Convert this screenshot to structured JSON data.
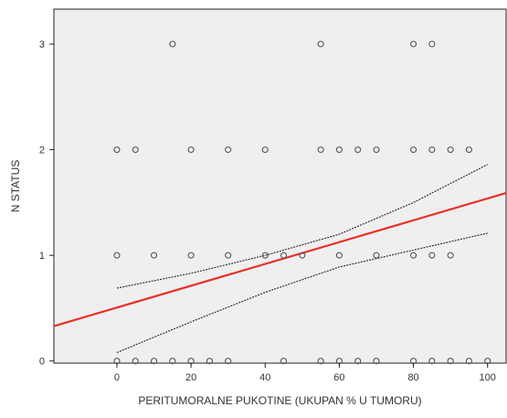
{
  "chart_data": {
    "type": "scatter",
    "title": "",
    "xlabel": "PERITUMORALNE PUKOTINE (UKUPAN % U TUMORU)",
    "ylabel": "N STATUS",
    "xlim": [
      -17,
      105
    ],
    "ylim": [
      -0.02,
      3.33
    ],
    "x_ticks": [
      0,
      20,
      40,
      60,
      80,
      100
    ],
    "y_ticks": [
      0,
      1,
      2,
      3
    ],
    "x_tick_labels": [
      "0",
      "20",
      "40",
      "60",
      "80",
      "100"
    ],
    "y_tick_labels": [
      "0",
      "1",
      "2",
      "3"
    ],
    "grid": false,
    "background": "#efefef",
    "points_color": "#555555",
    "points": [
      {
        "x": 0,
        "y": 0
      },
      {
        "x": 5,
        "y": 0
      },
      {
        "x": 10,
        "y": 0
      },
      {
        "x": 15,
        "y": 0
      },
      {
        "x": 20,
        "y": 0
      },
      {
        "x": 25,
        "y": 0
      },
      {
        "x": 30,
        "y": 0
      },
      {
        "x": 45,
        "y": 0
      },
      {
        "x": 55,
        "y": 0
      },
      {
        "x": 60,
        "y": 0
      },
      {
        "x": 65,
        "y": 0
      },
      {
        "x": 70,
        "y": 0
      },
      {
        "x": 80,
        "y": 0
      },
      {
        "x": 85,
        "y": 0
      },
      {
        "x": 90,
        "y": 0
      },
      {
        "x": 95,
        "y": 0
      },
      {
        "x": 100,
        "y": 0
      },
      {
        "x": 0,
        "y": 1
      },
      {
        "x": 10,
        "y": 1
      },
      {
        "x": 20,
        "y": 1
      },
      {
        "x": 30,
        "y": 1
      },
      {
        "x": 40,
        "y": 1
      },
      {
        "x": 45,
        "y": 1
      },
      {
        "x": 50,
        "y": 1
      },
      {
        "x": 60,
        "y": 1
      },
      {
        "x": 70,
        "y": 1
      },
      {
        "x": 80,
        "y": 1
      },
      {
        "x": 85,
        "y": 1
      },
      {
        "x": 90,
        "y": 1
      },
      {
        "x": 0,
        "y": 2
      },
      {
        "x": 5,
        "y": 2
      },
      {
        "x": 20,
        "y": 2
      },
      {
        "x": 30,
        "y": 2
      },
      {
        "x": 40,
        "y": 2
      },
      {
        "x": 55,
        "y": 2
      },
      {
        "x": 60,
        "y": 2
      },
      {
        "x": 65,
        "y": 2
      },
      {
        "x": 70,
        "y": 2
      },
      {
        "x": 80,
        "y": 2
      },
      {
        "x": 85,
        "y": 2
      },
      {
        "x": 90,
        "y": 2
      },
      {
        "x": 95,
        "y": 2
      },
      {
        "x": 15,
        "y": 3
      },
      {
        "x": 55,
        "y": 3
      },
      {
        "x": 80,
        "y": 3
      },
      {
        "x": 85,
        "y": 3
      }
    ],
    "fit_line": {
      "color": "#e8302a",
      "start": {
        "x": -17,
        "y": 0.33
      },
      "end": {
        "x": 105,
        "y": 1.59
      }
    },
    "confidence_band": {
      "color": "#333333",
      "upper": [
        {
          "x": 0,
          "y": 0.69
        },
        {
          "x": 20,
          "y": 0.83
        },
        {
          "x": 40,
          "y": 1.0
        },
        {
          "x": 60,
          "y": 1.2
        },
        {
          "x": 80,
          "y": 1.5
        },
        {
          "x": 100,
          "y": 1.86
        }
      ],
      "lower": [
        {
          "x": 0,
          "y": 0.08
        },
        {
          "x": 20,
          "y": 0.37
        },
        {
          "x": 40,
          "y": 0.65
        },
        {
          "x": 60,
          "y": 0.89
        },
        {
          "x": 80,
          "y": 1.05
        },
        {
          "x": 100,
          "y": 1.21
        }
      ]
    }
  }
}
